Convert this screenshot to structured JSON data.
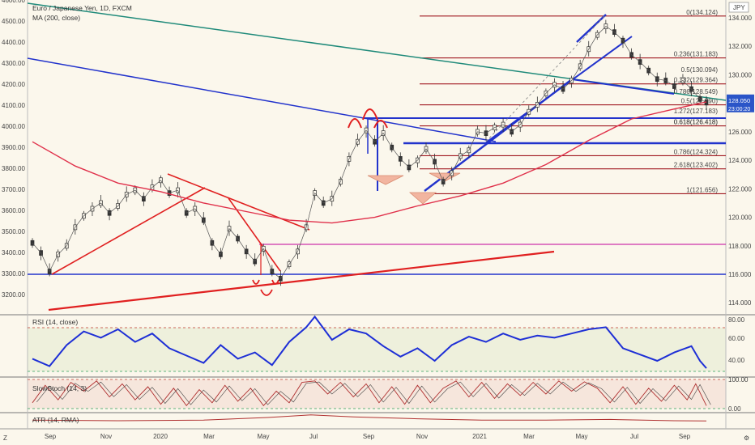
{
  "header": {
    "title": "Euro / Japanese Yen, 1D, FXCM",
    "ma_label": "MA (200, close)",
    "currency": "JPY",
    "close_price": "128.050",
    "countdown": "23:00:20",
    "price_tag_level": 128.05
  },
  "panes": {
    "rsi_title": "RSI (14, close)",
    "stoch_title": "SlowStoch (14, 3)",
    "atr_title": "ATR (14, RMA)",
    "rsi_ticks": [
      "80.00",
      "60.00",
      "40.00"
    ],
    "stoch_ticks": [
      "100.00",
      "0.00"
    ]
  },
  "chart_data": {
    "type": "line",
    "symbol": "EURJPY",
    "right_axis": {
      "range": [
        113.5,
        134.5
      ],
      "ticks": [
        "134.000",
        "132.000",
        "130.000",
        "128.000",
        "126.000",
        "124.000",
        "122.000",
        "120.000",
        "118.000",
        "116.000",
        "114.000"
      ]
    },
    "left_axis": {
      "ticks": [
        "4600.00",
        "4500.00",
        "4400.00",
        "4300.00",
        "4200.00",
        "4100.00",
        "4000.00",
        "3900.00",
        "3800.00",
        "3700.00",
        "3600.00",
        "3500.00",
        "3400.00",
        "3300.00",
        "3200.00"
      ]
    },
    "x_labels": [
      "Sep",
      "Nov",
      "2020",
      "Mar",
      "May",
      "Jul",
      "Sep",
      "Nov",
      "2021",
      "Mar",
      "May",
      "Jul",
      "Sep"
    ],
    "fib_levels": [
      {
        "label": "0(134.124)",
        "value": 134.124
      },
      {
        "label": "0.236(131.183)",
        "value": 131.183
      },
      {
        "label": "0.382(129.364)",
        "value": 129.364
      },
      {
        "label": "0.5(127.890)",
        "value": 127.89
      },
      {
        "label": "0.618(126.418)",
        "value": 126.418
      },
      {
        "label": "0.786(124.324)",
        "value": 124.324
      },
      {
        "label": "2.618(123.402)",
        "value": 123.402
      },
      {
        "label": "1(121.656)",
        "value": 121.656
      },
      {
        "label": "0.5(130.094)",
        "value": 130.094
      },
      {
        "label": "0.786(128.549)",
        "value": 128.549
      },
      {
        "label": "1.272(127.183)",
        "value": 127.183
      },
      {
        "label": "0.618(126.418)",
        "value": 126.418
      }
    ],
    "price_series": [
      {
        "d": 0,
        "v": 118.2
      },
      {
        "d": 8,
        "v": 117.5
      },
      {
        "d": 16,
        "v": 116.2
      },
      {
        "d": 24,
        "v": 117.4
      },
      {
        "d": 32,
        "v": 118.0
      },
      {
        "d": 40,
        "v": 119.3
      },
      {
        "d": 48,
        "v": 120.1
      },
      {
        "d": 56,
        "v": 120.6
      },
      {
        "d": 64,
        "v": 121.0
      },
      {
        "d": 72,
        "v": 120.3
      },
      {
        "d": 80,
        "v": 120.8
      },
      {
        "d": 88,
        "v": 121.6
      },
      {
        "d": 96,
        "v": 121.9
      },
      {
        "d": 104,
        "v": 121.3
      },
      {
        "d": 112,
        "v": 122.1
      },
      {
        "d": 120,
        "v": 122.6
      },
      {
        "d": 128,
        "v": 121.7
      },
      {
        "d": 136,
        "v": 121.9
      },
      {
        "d": 144,
        "v": 120.3
      },
      {
        "d": 152,
        "v": 120.6
      },
      {
        "d": 160,
        "v": 119.8
      },
      {
        "d": 168,
        "v": 118.2
      },
      {
        "d": 176,
        "v": 117.4
      },
      {
        "d": 184,
        "v": 119.2
      },
      {
        "d": 192,
        "v": 118.5
      },
      {
        "d": 200,
        "v": 117.6
      },
      {
        "d": 208,
        "v": 116.9
      },
      {
        "d": 216,
        "v": 117.8
      },
      {
        "d": 224,
        "v": 116.2
      },
      {
        "d": 232,
        "v": 115.7
      },
      {
        "d": 240,
        "v": 116.7
      },
      {
        "d": 248,
        "v": 117.6
      },
      {
        "d": 256,
        "v": 119.3
      },
      {
        "d": 264,
        "v": 121.7
      },
      {
        "d": 272,
        "v": 121.0
      },
      {
        "d": 280,
        "v": 121.3
      },
      {
        "d": 288,
        "v": 122.5
      },
      {
        "d": 296,
        "v": 124.1
      },
      {
        "d": 304,
        "v": 125.3
      },
      {
        "d": 312,
        "v": 126.1
      },
      {
        "d": 320,
        "v": 125.3
      },
      {
        "d": 328,
        "v": 125.9
      },
      {
        "d": 336,
        "v": 124.9
      },
      {
        "d": 344,
        "v": 124.1
      },
      {
        "d": 352,
        "v": 123.5
      },
      {
        "d": 360,
        "v": 124.0
      },
      {
        "d": 368,
        "v": 124.8
      },
      {
        "d": 376,
        "v": 123.9
      },
      {
        "d": 384,
        "v": 122.5
      },
      {
        "d": 392,
        "v": 123.1
      },
      {
        "d": 400,
        "v": 124.3
      },
      {
        "d": 408,
        "v": 124.7
      },
      {
        "d": 416,
        "v": 126.0
      },
      {
        "d": 424,
        "v": 125.9
      },
      {
        "d": 432,
        "v": 126.3
      },
      {
        "d": 440,
        "v": 126.5
      },
      {
        "d": 448,
        "v": 126.0
      },
      {
        "d": 456,
        "v": 126.5
      },
      {
        "d": 464,
        "v": 127.4
      },
      {
        "d": 472,
        "v": 127.9
      },
      {
        "d": 480,
        "v": 128.7
      },
      {
        "d": 488,
        "v": 129.3
      },
      {
        "d": 496,
        "v": 129.0
      },
      {
        "d": 504,
        "v": 129.6
      },
      {
        "d": 512,
        "v": 130.6
      },
      {
        "d": 520,
        "v": 131.8
      },
      {
        "d": 528,
        "v": 132.8
      },
      {
        "d": 536,
        "v": 133.4
      },
      {
        "d": 544,
        "v": 133.0
      },
      {
        "d": 552,
        "v": 132.4
      },
      {
        "d": 560,
        "v": 131.4
      },
      {
        "d": 568,
        "v": 130.9
      },
      {
        "d": 576,
        "v": 130.3
      },
      {
        "d": 584,
        "v": 129.7
      },
      {
        "d": 592,
        "v": 129.6
      },
      {
        "d": 600,
        "v": 129.2
      },
      {
        "d": 608,
        "v": 129.6
      },
      {
        "d": 616,
        "v": 129.0
      },
      {
        "d": 624,
        "v": 128.3
      },
      {
        "d": 630,
        "v": 128.05
      }
    ],
    "ma_series": [
      {
        "d": 0,
        "v": 125.3
      },
      {
        "d": 40,
        "v": 123.6
      },
      {
        "d": 80,
        "v": 122.4
      },
      {
        "d": 120,
        "v": 121.8
      },
      {
        "d": 160,
        "v": 121.0
      },
      {
        "d": 200,
        "v": 120.4
      },
      {
        "d": 240,
        "v": 119.8
      },
      {
        "d": 280,
        "v": 119.6
      },
      {
        "d": 320,
        "v": 120.0
      },
      {
        "d": 360,
        "v": 120.8
      },
      {
        "d": 400,
        "v": 121.5
      },
      {
        "d": 440,
        "v": 122.4
      },
      {
        "d": 480,
        "v": 123.7
      },
      {
        "d": 520,
        "v": 125.4
      },
      {
        "d": 560,
        "v": 126.9
      },
      {
        "d": 600,
        "v": 127.6
      },
      {
        "d": 630,
        "v": 128.1
      }
    ],
    "rsi_series": [
      {
        "d": 0,
        "v": 42
      },
      {
        "d": 16,
        "v": 35
      },
      {
        "d": 32,
        "v": 55
      },
      {
        "d": 48,
        "v": 68
      },
      {
        "d": 64,
        "v": 62
      },
      {
        "d": 80,
        "v": 70
      },
      {
        "d": 96,
        "v": 58
      },
      {
        "d": 112,
        "v": 66
      },
      {
        "d": 128,
        "v": 52
      },
      {
        "d": 144,
        "v": 45
      },
      {
        "d": 160,
        "v": 38
      },
      {
        "d": 176,
        "v": 55
      },
      {
        "d": 192,
        "v": 42
      },
      {
        "d": 208,
        "v": 48
      },
      {
        "d": 224,
        "v": 36
      },
      {
        "d": 240,
        "v": 58
      },
      {
        "d": 256,
        "v": 72
      },
      {
        "d": 264,
        "v": 82
      },
      {
        "d": 280,
        "v": 60
      },
      {
        "d": 296,
        "v": 70
      },
      {
        "d": 312,
        "v": 66
      },
      {
        "d": 328,
        "v": 54
      },
      {
        "d": 344,
        "v": 44
      },
      {
        "d": 360,
        "v": 52
      },
      {
        "d": 376,
        "v": 40
      },
      {
        "d": 392,
        "v": 55
      },
      {
        "d": 408,
        "v": 63
      },
      {
        "d": 424,
        "v": 58
      },
      {
        "d": 440,
        "v": 66
      },
      {
        "d": 456,
        "v": 60
      },
      {
        "d": 472,
        "v": 64
      },
      {
        "d": 488,
        "v": 62
      },
      {
        "d": 504,
        "v": 66
      },
      {
        "d": 520,
        "v": 70
      },
      {
        "d": 536,
        "v": 72
      },
      {
        "d": 552,
        "v": 52
      },
      {
        "d": 568,
        "v": 46
      },
      {
        "d": 584,
        "v": 40
      },
      {
        "d": 600,
        "v": 48
      },
      {
        "d": 616,
        "v": 54
      },
      {
        "d": 624,
        "v": 40
      },
      {
        "d": 630,
        "v": 33
      }
    ],
    "stoch_series": [
      {
        "d": 0,
        "v": 20
      },
      {
        "d": 12,
        "v": 80
      },
      {
        "d": 24,
        "v": 30
      },
      {
        "d": 36,
        "v": 90
      },
      {
        "d": 48,
        "v": 60
      },
      {
        "d": 60,
        "v": 95
      },
      {
        "d": 72,
        "v": 40
      },
      {
        "d": 84,
        "v": 85
      },
      {
        "d": 96,
        "v": 30
      },
      {
        "d": 108,
        "v": 75
      },
      {
        "d": 120,
        "v": 15
      },
      {
        "d": 132,
        "v": 70
      },
      {
        "d": 144,
        "v": 10
      },
      {
        "d": 156,
        "v": 65
      },
      {
        "d": 168,
        "v": 20
      },
      {
        "d": 180,
        "v": 80
      },
      {
        "d": 192,
        "v": 25
      },
      {
        "d": 204,
        "v": 70
      },
      {
        "d": 216,
        "v": 10
      },
      {
        "d": 228,
        "v": 60
      },
      {
        "d": 240,
        "v": 20
      },
      {
        "d": 252,
        "v": 90
      },
      {
        "d": 264,
        "v": 95
      },
      {
        "d": 276,
        "v": 50
      },
      {
        "d": 288,
        "v": 90
      },
      {
        "d": 300,
        "v": 40
      },
      {
        "d": 312,
        "v": 85
      },
      {
        "d": 324,
        "v": 20
      },
      {
        "d": 336,
        "v": 75
      },
      {
        "d": 348,
        "v": 15
      },
      {
        "d": 360,
        "v": 80
      },
      {
        "d": 372,
        "v": 20
      },
      {
        "d": 384,
        "v": 70
      },
      {
        "d": 396,
        "v": 95
      },
      {
        "d": 408,
        "v": 40
      },
      {
        "d": 420,
        "v": 90
      },
      {
        "d": 432,
        "v": 35
      },
      {
        "d": 444,
        "v": 85
      },
      {
        "d": 456,
        "v": 45
      },
      {
        "d": 468,
        "v": 90
      },
      {
        "d": 480,
        "v": 50
      },
      {
        "d": 492,
        "v": 95
      },
      {
        "d": 504,
        "v": 60
      },
      {
        "d": 516,
        "v": 92
      },
      {
        "d": 528,
        "v": 70
      },
      {
        "d": 540,
        "v": 20
      },
      {
        "d": 552,
        "v": 75
      },
      {
        "d": 564,
        "v": 15
      },
      {
        "d": 576,
        "v": 70
      },
      {
        "d": 588,
        "v": 25
      },
      {
        "d": 600,
        "v": 80
      },
      {
        "d": 612,
        "v": 30
      },
      {
        "d": 620,
        "v": 85
      },
      {
        "d": 630,
        "v": 10
      }
    ],
    "atr_series": [
      {
        "d": 0,
        "v": 0.55
      },
      {
        "d": 80,
        "v": 0.5
      },
      {
        "d": 160,
        "v": 0.55
      },
      {
        "d": 220,
        "v": 0.75
      },
      {
        "d": 260,
        "v": 0.95
      },
      {
        "d": 300,
        "v": 0.8
      },
      {
        "d": 360,
        "v": 0.65
      },
      {
        "d": 420,
        "v": 0.55
      },
      {
        "d": 480,
        "v": 0.55
      },
      {
        "d": 540,
        "v": 0.6
      },
      {
        "d": 600,
        "v": 0.5
      },
      {
        "d": 630,
        "v": 0.48
      }
    ]
  }
}
